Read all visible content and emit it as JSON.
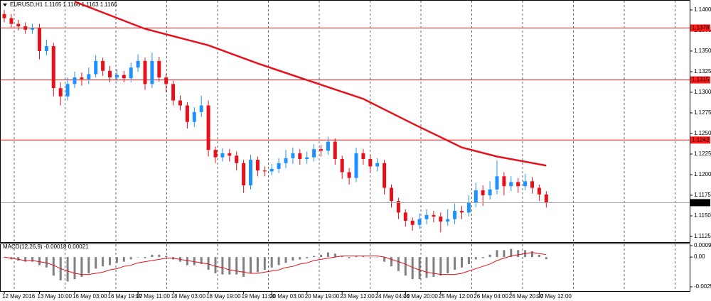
{
  "chart_data": {
    "type": "candlestick",
    "title": "EURUSD,H1 1.1165 1.1166 1.1163 1.1166",
    "categories": [
      "12 May 2016",
      null,
      null,
      null,
      null,
      "13 May 10:00",
      null,
      null,
      null,
      null,
      "16 May 03:00",
      null,
      null,
      null,
      null,
      "16 May 19:00",
      null,
      null,
      null,
      "17 May 11:00",
      null,
      null,
      null,
      null,
      "18 May 03:00",
      null,
      null,
      null,
      null,
      "18 May 19:00",
      null,
      null,
      null,
      null,
      "19 May 11:00",
      null,
      null,
      null,
      "20 May 03:00",
      null,
      null,
      null,
      null,
      "20 May 19:00",
      null,
      null,
      null,
      null,
      "23 May 12:00",
      null,
      null,
      null,
      null,
      "24 May 04:00",
      null,
      null,
      null,
      "24 May 20:00",
      null,
      null,
      null,
      null,
      "25 May 12:00",
      null,
      null,
      null,
      null,
      "26 May 04:00",
      null,
      null,
      null,
      null,
      "26 May 20:00",
      null,
      null,
      null,
      "27 May 12:00",
      null
    ],
    "candles": [
      [
        1.1395,
        1.14,
        1.1385,
        1.139
      ],
      [
        1.139,
        1.1395,
        1.1378,
        1.1383
      ],
      [
        1.1383,
        1.1388,
        1.1375,
        1.138
      ],
      [
        1.138,
        1.1385,
        1.1371,
        1.1376
      ],
      [
        1.1376,
        1.1383,
        1.1371,
        1.1378
      ],
      [
        1.1378,
        1.1383,
        1.134,
        1.135
      ],
      [
        1.135,
        1.1364,
        1.1345,
        1.1356
      ],
      [
        1.1356,
        1.136,
        1.1295,
        1.1305
      ],
      [
        1.1305,
        1.1312,
        1.1284,
        1.1295
      ],
      [
        1.1295,
        1.1318,
        1.129,
        1.131
      ],
      [
        1.131,
        1.1325,
        1.1305,
        1.1318
      ],
      [
        1.1318,
        1.1324,
        1.1308,
        1.1316
      ],
      [
        1.1316,
        1.133,
        1.131,
        1.1322
      ],
      [
        1.1322,
        1.1345,
        1.1318,
        1.1338
      ],
      [
        1.1338,
        1.1342,
        1.132,
        1.1326
      ],
      [
        1.1326,
        1.1332,
        1.1312,
        1.1318
      ],
      [
        1.1318,
        1.1328,
        1.1313,
        1.1321
      ],
      [
        1.1321,
        1.1326,
        1.1312,
        1.1317
      ],
      [
        1.1317,
        1.1336,
        1.1312,
        1.133
      ],
      [
        1.133,
        1.1346,
        1.1325,
        1.1338
      ],
      [
        1.1338,
        1.1342,
        1.1303,
        1.131
      ],
      [
        1.131,
        1.1348,
        1.1305,
        1.1338
      ],
      [
        1.1338,
        1.1343,
        1.1313,
        1.1318
      ],
      [
        1.1318,
        1.1322,
        1.13,
        1.131
      ],
      [
        1.131,
        1.1314,
        1.1284,
        1.129
      ],
      [
        1.129,
        1.1296,
        1.1278,
        1.1284
      ],
      [
        1.1284,
        1.1288,
        1.1256,
        1.1264
      ],
      [
        1.1264,
        1.1282,
        1.1258,
        1.1276
      ],
      [
        1.1276,
        1.1296,
        1.127,
        1.1284
      ],
      [
        1.1284,
        1.129,
        1.1222,
        1.123
      ],
      [
        1.123,
        1.1234,
        1.1214,
        1.1221
      ],
      [
        1.1221,
        1.1232,
        1.1216,
        1.1226
      ],
      [
        1.1226,
        1.1231,
        1.1216,
        1.1223
      ],
      [
        1.1223,
        1.1228,
        1.1205,
        1.1214
      ],
      [
        1.1214,
        1.1218,
        1.1178,
        1.1187
      ],
      [
        1.1187,
        1.1224,
        1.1182,
        1.1218
      ],
      [
        1.1218,
        1.1222,
        1.1198,
        1.1205
      ],
      [
        1.1205,
        1.121,
        1.1198,
        1.1204
      ],
      [
        1.1204,
        1.1213,
        1.1199,
        1.1207
      ],
      [
        1.1207,
        1.122,
        1.1202,
        1.1214
      ],
      [
        1.1214,
        1.123,
        1.1208,
        1.122
      ],
      [
        1.122,
        1.1233,
        1.1213,
        1.1226
      ],
      [
        1.1226,
        1.1231,
        1.1212,
        1.1219
      ],
      [
        1.1219,
        1.1228,
        1.1213,
        1.1221
      ],
      [
        1.1221,
        1.1237,
        1.1216,
        1.1231
      ],
      [
        1.1231,
        1.1236,
        1.1222,
        1.1229
      ],
      [
        1.1229,
        1.1246,
        1.1224,
        1.124
      ],
      [
        1.124,
        1.1244,
        1.1212,
        1.1219
      ],
      [
        1.1219,
        1.1223,
        1.1195,
        1.1203
      ],
      [
        1.1203,
        1.1208,
        1.1188,
        1.1196
      ],
      [
        1.1196,
        1.1233,
        1.1191,
        1.1226
      ],
      [
        1.1226,
        1.1231,
        1.1212,
        1.1219
      ],
      [
        1.1219,
        1.1224,
        1.1203,
        1.121
      ],
      [
        1.121,
        1.122,
        1.1204,
        1.1214
      ],
      [
        1.1214,
        1.1218,
        1.1176,
        1.1184
      ],
      [
        1.1184,
        1.1188,
        1.116,
        1.1168
      ],
      [
        1.1168,
        1.1172,
        1.1146,
        1.1154
      ],
      [
        1.1154,
        1.1158,
        1.1137,
        1.1144
      ],
      [
        1.1144,
        1.1148,
        1.1132,
        1.1139
      ],
      [
        1.1139,
        1.1153,
        1.1134,
        1.1146
      ],
      [
        1.1146,
        1.1158,
        1.114,
        1.1151
      ],
      [
        1.1151,
        1.1156,
        1.1142,
        1.1149
      ],
      [
        1.1149,
        1.1154,
        1.113,
        1.1143
      ],
      [
        1.1143,
        1.1158,
        1.1138,
        1.1146
      ],
      [
        1.1146,
        1.1165,
        1.114,
        1.1156
      ],
      [
        1.1156,
        1.1162,
        1.1146,
        1.1154
      ],
      [
        1.1154,
        1.1175,
        1.1149,
        1.1166
      ],
      [
        1.1166,
        1.119,
        1.116,
        1.1181
      ],
      [
        1.1181,
        1.1187,
        1.1162,
        1.1175
      ],
      [
        1.1175,
        1.1192,
        1.117,
        1.1182
      ],
      [
        1.1182,
        1.1217,
        1.1176,
        1.1198
      ],
      [
        1.1198,
        1.1203,
        1.1175,
        1.1186
      ],
      [
        1.1186,
        1.1198,
        1.118,
        1.1191
      ],
      [
        1.1191,
        1.1196,
        1.1178,
        1.1186
      ],
      [
        1.1186,
        1.1201,
        1.1181,
        1.1192
      ],
      [
        1.1192,
        1.1197,
        1.1177,
        1.1184
      ],
      [
        1.1184,
        1.1188,
        1.1168,
        1.1176
      ],
      [
        1.1176,
        1.118,
        1.116,
        1.1166
      ]
    ],
    "up_color": "#1e90ff",
    "down_color": "#e8101a",
    "ylim": [
      1.1119,
      1.1412
    ],
    "yticks": [
      {
        "value": 1.14,
        "label": "1.1400"
      },
      1.1375,
      {
        "value": 1.135,
        "label": "1.1350"
      },
      1.1325,
      {
        "value": 1.13,
        "label": "1.1300"
      },
      1.1275,
      {
        "value": 1.125,
        "label": "1.1250"
      },
      1.1225,
      {
        "value": 1.12,
        "label": "1.1200"
      },
      1.1175,
      {
        "value": 1.115,
        "label": "1.1150"
      },
      1.1125
    ],
    "levels": [
      1.1378,
      1.1315,
      1.1242
    ],
    "level_color": "#ff1a1a",
    "current_price": 1.1166,
    "ma": {
      "color": "#e8101a",
      "x": [
        10,
        20,
        29,
        36,
        44,
        51,
        58,
        65,
        70,
        77
      ],
      "values": [
        1.141,
        1.1377,
        1.1357,
        1.1335,
        1.1312,
        1.1292,
        1.1262,
        1.1233,
        1.1222,
        1.1211
      ]
    },
    "macd": {
      "title": "MACD(12,26,9) -0.00018 0.00021",
      "hist_color": "#808080",
      "signal_color": "#e8101a",
      "ylim": [
        -0.00293,
        0.00117
      ],
      "yticks": [
        0.00099,
        {
          "value": 0,
          "label": "0.00"
        },
        -0.00256
      ],
      "histogram": [
        0,
        -0.0002,
        -0.0003,
        -0.0004,
        -0.0004,
        -0.0007,
        -0.0009,
        -0.0016,
        -0.002,
        -0.0021,
        -0.0019,
        -0.0017,
        -0.0014,
        -0.001,
        -0.0008,
        -0.0007,
        -0.0005,
        -0.0004,
        -0.0002,
        0,
        -0.0001,
        0.0002,
        0.0002,
        0.0001,
        -0.0002,
        -0.0004,
        -0.0007,
        -0.0007,
        -0.0006,
        -0.0011,
        -0.0014,
        -0.0015,
        -0.0015,
        -0.0015,
        -0.0017,
        -0.0014,
        -0.0013,
        -0.0011,
        -0.0009,
        -0.0007,
        -0.0005,
        -0.0003,
        -0.0002,
        -0.0001,
        0.0001,
        0.0002,
        0.0004,
        0.0003,
        0.0001,
        -0.0001,
        0.0001,
        0.0001,
        0,
        0,
        -0.0004,
        -0.0008,
        -0.0012,
        -0.0016,
        -0.0019,
        -0.0019,
        -0.0018,
        -0.0017,
        -0.0016,
        -0.0014,
        -0.0011,
        -0.0009,
        -0.0006,
        -0.0002,
        -0.0001,
        0.0002,
        0.0006,
        0.0006,
        0.0007,
        0.0006,
        0.0006,
        0.0005,
        0.0002,
        -0.00018
      ],
      "signal": [
        0,
        -0.0001,
        -0.0002,
        -0.0003,
        -0.0003,
        -0.0004,
        -0.0005,
        -0.0007,
        -0.001,
        -0.0012,
        -0.0014,
        -0.0015,
        -0.0015,
        -0.0014,
        -0.0013,
        -0.0011,
        -0.001,
        -0.0008,
        -0.0007,
        -0.0005,
        -0.0004,
        -0.0003,
        -0.0002,
        -0.0001,
        -0.0001,
        -0.0002,
        -0.0003,
        -0.0004,
        -0.0005,
        -0.0006,
        -0.0008,
        -0.0009,
        -0.0011,
        -0.0012,
        -0.0013,
        -0.0014,
        -0.0014,
        -0.0013,
        -0.0012,
        -0.0011,
        -0.0009,
        -0.0008,
        -0.0006,
        -0.0005,
        -0.0003,
        -0.0002,
        -0.0001,
        0,
        0.0001,
        0.0001,
        0.0001,
        0.0001,
        0.0001,
        0.0001,
        0,
        -0.0002,
        -0.0004,
        -0.0006,
        -0.0009,
        -0.0011,
        -0.0013,
        -0.0014,
        -0.0015,
        -0.0015,
        -0.0015,
        -0.0014,
        -0.0012,
        -0.001,
        -0.0008,
        -0.0006,
        -0.0003,
        -0.0001,
        0.0001,
        0.0002,
        0.0003,
        0.0004,
        0.0003,
        0.00021
      ]
    }
  }
}
